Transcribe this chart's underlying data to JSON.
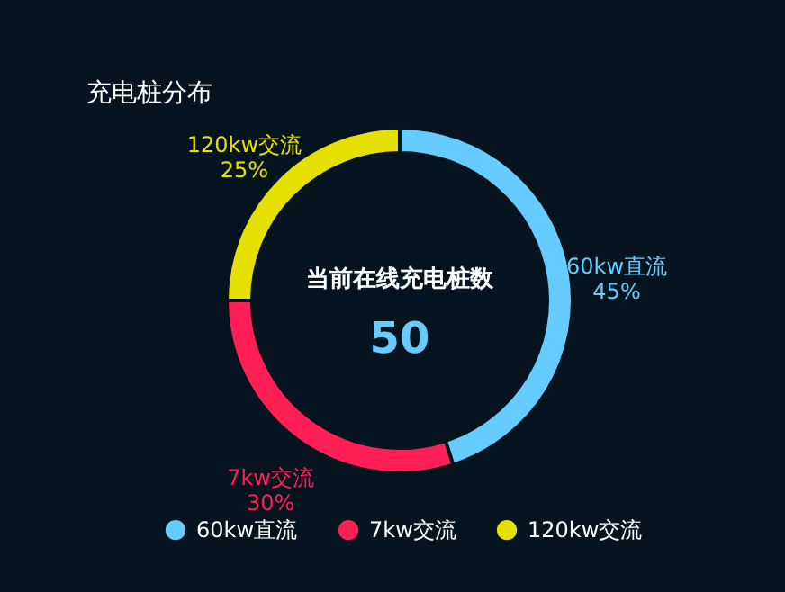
{
  "chart_data": {
    "type": "donut",
    "title": "充电桩分布",
    "categories": [
      "60kw直流",
      "7kw交流",
      "120kw交流"
    ],
    "values": [
      45,
      30,
      25
    ],
    "value_labels": [
      "45%",
      "30%",
      "25%"
    ],
    "colors": [
      "#66ccff",
      "#ff1f55",
      "#e6e000"
    ],
    "annotations": [
      "当前在线充电桩数",
      "50"
    ],
    "legend": "bottom"
  }
}
